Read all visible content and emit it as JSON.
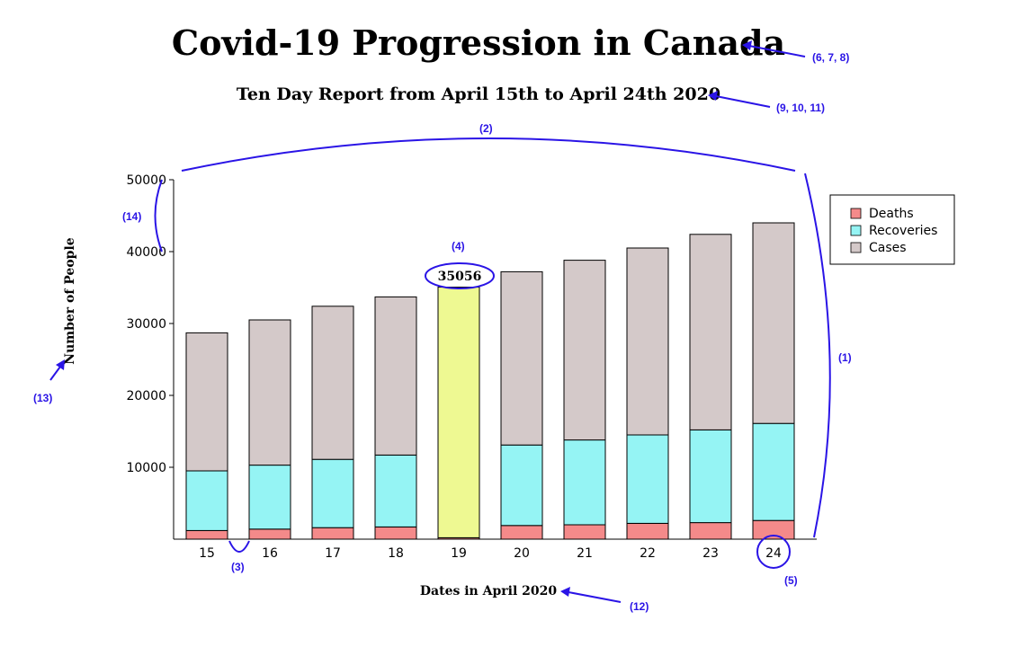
{
  "colors": {
    "deaths": "#f48a8a",
    "recoveries": "#95f4f4",
    "cases": "#d4c9c9",
    "highlight": "#eef992",
    "annotation": "#2a14e6"
  },
  "annotations": {
    "a1": "(1)",
    "a2": "(2)",
    "a3": "(3)",
    "a4": "(4)",
    "a5": "(5)",
    "a678": "(6, 7, 8)",
    "a91011": "(9, 10, 11)",
    "a12": "(12)",
    "a13": "(13)",
    "a14": "(14)"
  },
  "chart_data": {
    "type": "bar",
    "stacked": true,
    "title": "Covid-19 Progression in Canada",
    "subtitle": "Ten Day Report from April 15th to April 24th 2020",
    "xlabel": "Dates in April 2020",
    "ylabel": "Number of People",
    "categories": [
      "15",
      "16",
      "17",
      "18",
      "19",
      "20",
      "21",
      "22",
      "23",
      "24"
    ],
    "ylim": [
      0,
      50000
    ],
    "yticks": [
      "10000",
      "20000",
      "30000",
      "40000",
      "50000"
    ],
    "series": [
      {
        "name": "Deaths",
        "values": [
          1200,
          1400,
          1600,
          1700,
          200,
          1900,
          2000,
          2200,
          2300,
          2600
        ]
      },
      {
        "name": "Recoveries",
        "values": [
          8300,
          8900,
          9500,
          10000,
          0,
          11200,
          11800,
          12300,
          12900,
          13500
        ]
      },
      {
        "name": "Cases",
        "values": [
          19200,
          20200,
          21300,
          22000,
          34856,
          24100,
          25000,
          26000,
          27200,
          27900
        ]
      }
    ],
    "highlight": {
      "category": "19",
      "total": 35056,
      "label": "35056"
    },
    "legend": {
      "position": "top-right",
      "items": [
        "Deaths",
        "Recoveries",
        "Cases"
      ]
    },
    "grid": false
  }
}
